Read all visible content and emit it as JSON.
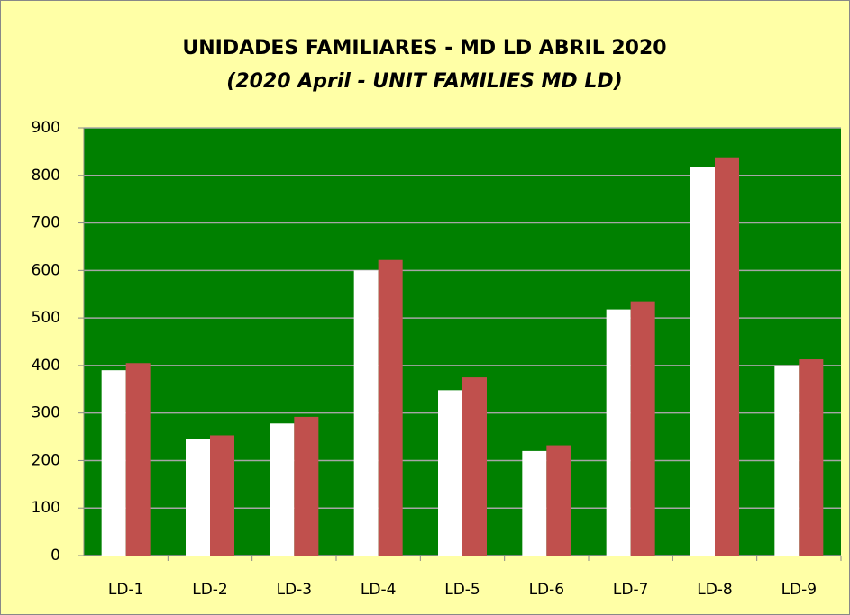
{
  "chart_data": {
    "type": "bar",
    "title": "UNIDADES FAMILIARES - MD LD ABRIL 2020",
    "subtitle": "(2020 April - UNIT FAMILIES MD LD)",
    "categories": [
      "LD-1",
      "LD-2",
      "LD-3",
      "LD-4",
      "LD-5",
      "LD-6",
      "LD-7",
      "LD-8",
      "LD-9"
    ],
    "series": [
      {
        "color": "#ffffff",
        "values": [
          390,
          245,
          278,
          600,
          348,
          220,
          518,
          818,
          400
        ]
      },
      {
        "color": "#c0504d",
        "values": [
          405,
          253,
          292,
          622,
          375,
          232,
          535,
          838,
          413
        ]
      }
    ],
    "ylim": [
      0,
      900
    ],
    "yticks": [
      0,
      100,
      200,
      300,
      400,
      500,
      600,
      700,
      800,
      900
    ],
    "grid": true
  }
}
